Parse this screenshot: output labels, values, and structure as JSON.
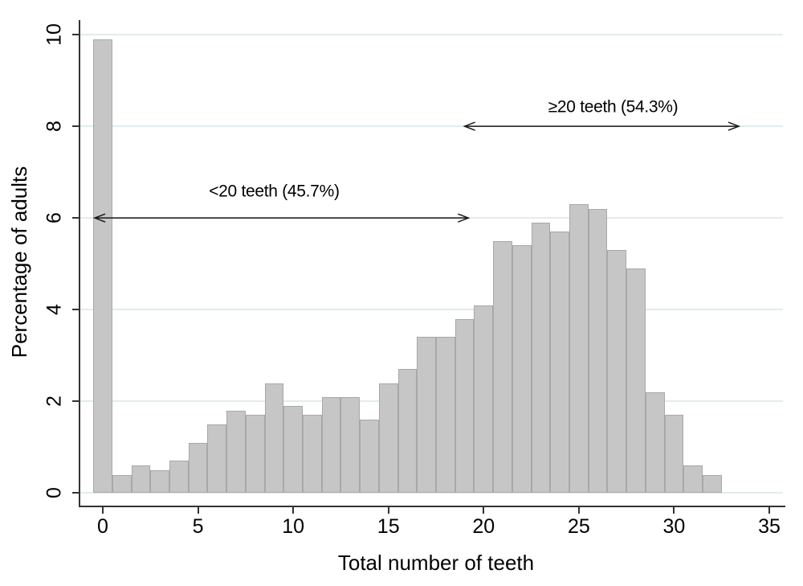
{
  "chart_data": {
    "type": "bar",
    "title": "",
    "xlabel": "Total number of teeth",
    "ylabel": "Percentage of adults",
    "categories": [
      0,
      1,
      2,
      3,
      4,
      5,
      6,
      7,
      8,
      9,
      10,
      11,
      12,
      13,
      14,
      15,
      16,
      17,
      18,
      19,
      20,
      21,
      22,
      23,
      24,
      25,
      26,
      27,
      28,
      29,
      30,
      31,
      32
    ],
    "values": [
      9.9,
      0.4,
      0.6,
      0.5,
      0.7,
      1.1,
      1.5,
      1.8,
      1.7,
      2.4,
      1.9,
      1.7,
      2.1,
      2.1,
      1.6,
      2.4,
      2.7,
      3.4,
      3.4,
      3.8,
      4.1,
      5.5,
      5.4,
      5.9,
      5.7,
      6.3,
      6.2,
      5.3,
      4.9,
      2.2,
      1.7,
      0.6,
      0.4
    ],
    "bar_width": 1,
    "xticks": [
      0,
      5,
      10,
      15,
      20,
      25,
      30,
      35
    ],
    "yticks": [
      0,
      2,
      4,
      6,
      8,
      10
    ],
    "xlim": [
      -1.2,
      35.7
    ],
    "ylim": [
      0,
      10
    ],
    "grid": true,
    "legend": "none",
    "annotations": [
      {
        "label": "<20 teeth (45.7%)",
        "arrow_y": 6,
        "arrow_x_start": -0.42,
        "arrow_x_end": 19.2,
        "double_headed": true,
        "text_center_x": 9.0,
        "text_center_y": 6.58
      },
      {
        "label": "≥20 teeth (54.3%)",
        "arrow_y": 8,
        "arrow_x_start": 19.0,
        "arrow_x_end": 33.4,
        "double_headed": true,
        "text_center_x": 26.8,
        "text_center_y": 8.42
      }
    ]
  },
  "colors": {
    "background": "#ffffff",
    "bar_fill": "#c6c6c6",
    "bar_border": "#a8a8a8",
    "gridline": "#e2ecee",
    "axis": "#333333",
    "arrow": "#1a1a1a",
    "text": "#000000"
  }
}
